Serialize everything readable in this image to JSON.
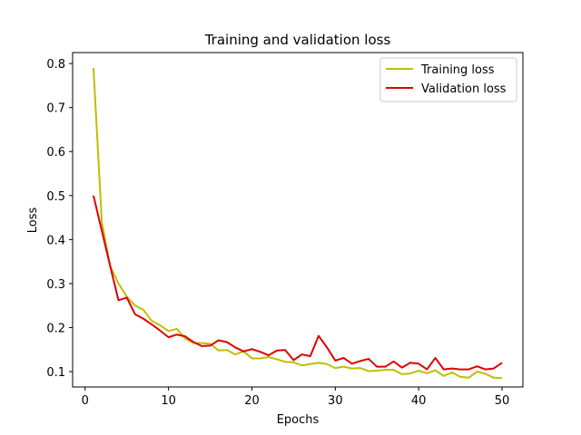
{
  "chart_data": {
    "type": "line",
    "title": "Training and validation loss",
    "xlabel": "Epochs",
    "ylabel": "Loss",
    "xlim": [
      -1.5,
      52.5
    ],
    "ylim": [
      0.065,
      0.825
    ],
    "xticks": [
      0,
      10,
      20,
      30,
      40,
      50
    ],
    "yticks": [
      0.1,
      0.2,
      0.3,
      0.4,
      0.5,
      0.6,
      0.7,
      0.8
    ],
    "legend_position": "top-right",
    "x": [
      1,
      2,
      3,
      4,
      5,
      6,
      7,
      8,
      9,
      10,
      11,
      12,
      13,
      14,
      15,
      16,
      17,
      18,
      19,
      20,
      21,
      22,
      23,
      24,
      25,
      26,
      27,
      28,
      29,
      30,
      31,
      32,
      33,
      34,
      35,
      36,
      37,
      38,
      39,
      40,
      41,
      42,
      43,
      44,
      45,
      46,
      47,
      48,
      49,
      50
    ],
    "series": [
      {
        "name": "Training loss",
        "color": "#bfbf00",
        "values": [
          0.79,
          0.44,
          0.34,
          0.3,
          0.27,
          0.25,
          0.24,
          0.215,
          0.205,
          0.192,
          0.197,
          0.175,
          0.165,
          0.165,
          0.163,
          0.148,
          0.149,
          0.139,
          0.146,
          0.13,
          0.13,
          0.133,
          0.128,
          0.122,
          0.121,
          0.114,
          0.117,
          0.12,
          0.117,
          0.108,
          0.111,
          0.107,
          0.108,
          0.101,
          0.102,
          0.104,
          0.104,
          0.094,
          0.096,
          0.102,
          0.096,
          0.103,
          0.09,
          0.098,
          0.088,
          0.086,
          0.1,
          0.095,
          0.086,
          0.085
        ]
      },
      {
        "name": "Validation loss",
        "color": "#e00000",
        "values": [
          0.5,
          0.42,
          0.34,
          0.262,
          0.268,
          0.23,
          0.22,
          0.207,
          0.193,
          0.178,
          0.184,
          0.18,
          0.167,
          0.158,
          0.159,
          0.171,
          0.167,
          0.155,
          0.146,
          0.151,
          0.145,
          0.137,
          0.148,
          0.149,
          0.126,
          0.139,
          0.135,
          0.181,
          0.155,
          0.125,
          0.131,
          0.118,
          0.124,
          0.129,
          0.111,
          0.111,
          0.123,
          0.109,
          0.12,
          0.118,
          0.105,
          0.131,
          0.105,
          0.107,
          0.105,
          0.105,
          0.112,
          0.105,
          0.107,
          0.12
        ]
      }
    ]
  }
}
